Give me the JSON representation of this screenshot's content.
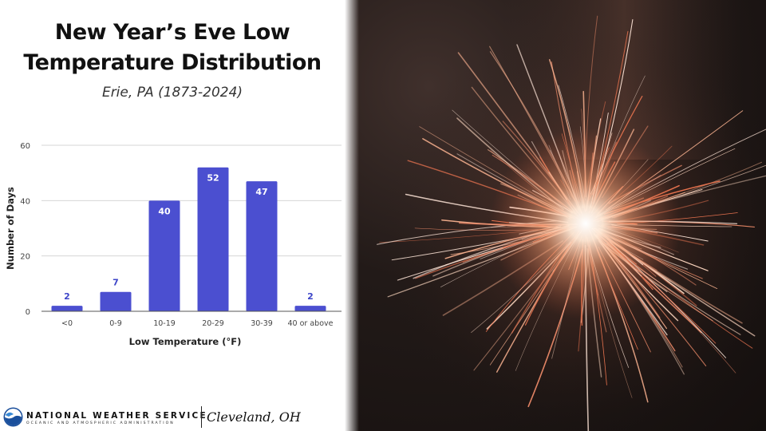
{
  "title_line1": "New Year’s Eve Low",
  "title_line2": "Temperature Distribution",
  "subtitle": "Erie, PA (1873-2024)",
  "chart_data": {
    "type": "bar",
    "categories": [
      "<0",
      "0-9",
      "10-19",
      "20-29",
      "30-39",
      "40 or above"
    ],
    "values": [
      2,
      7,
      40,
      52,
      47,
      2
    ],
    "xlabel": "Low Temperature (°F)",
    "ylabel": "Number of Days",
    "ylim": [
      0,
      60
    ],
    "yticks": [
      0,
      20,
      40,
      60
    ],
    "grid": true,
    "bar_color": "#4b4fd0",
    "label_color_outside": "#3d45c8",
    "label_color_inside": "#ffffff"
  },
  "footer": {
    "agency_name": "NATIONAL WEATHER SERVICE",
    "agency_sub": "OCEANIC AND ATMOSPHERIC ADMINISTRATION",
    "office": "Cleveland, OH"
  },
  "photo": {
    "subject_icon": "sparkler-icon"
  }
}
